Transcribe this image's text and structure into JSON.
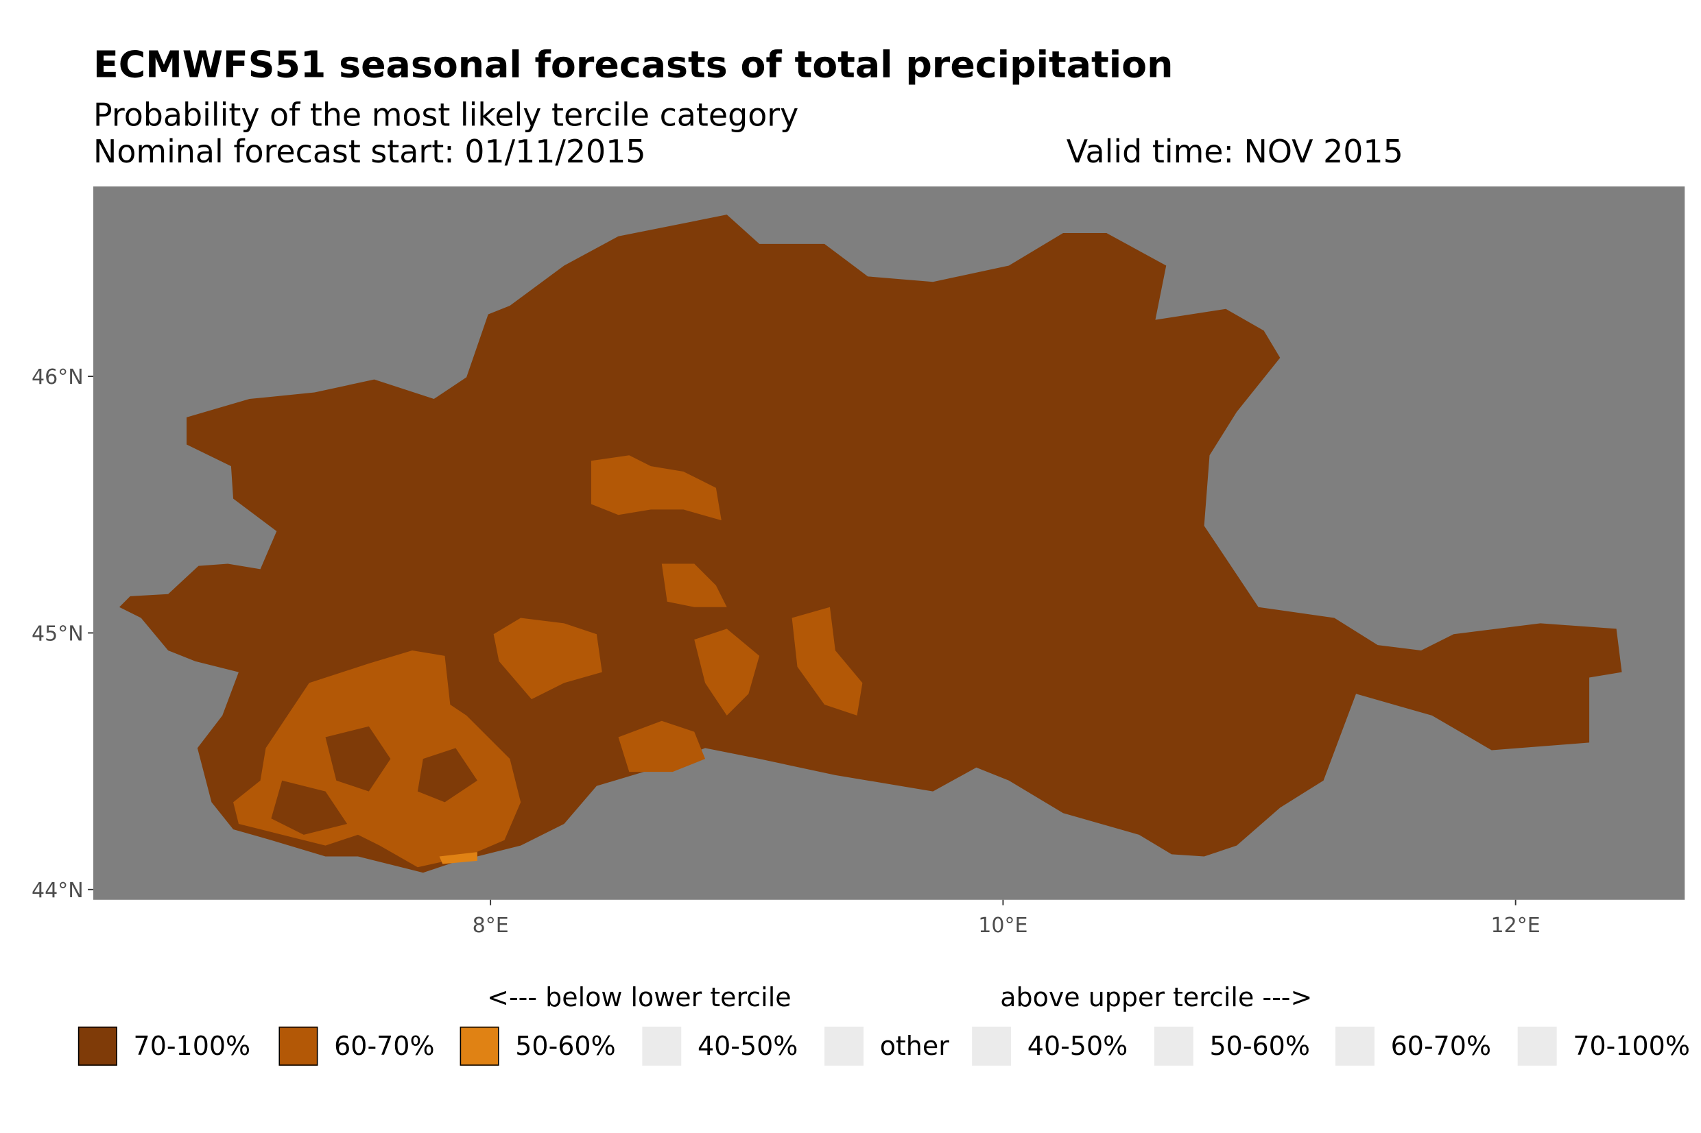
{
  "chart_data": {
    "type": "heatmap",
    "title": "ECMWFS51 seasonal forecasts of total precipitation",
    "subtitle": "Probability of the most likely tercile category",
    "forecast_start": "Nominal forecast start: 01/11/2015",
    "valid_time": "Valid time: NOV 2015",
    "x_axis": {
      "label": "",
      "ticks": [
        "8°E",
        "10°E",
        "12°E"
      ],
      "tick_values": [
        8,
        10,
        12
      ],
      "range": [
        6.45,
        12.66
      ]
    },
    "y_axis": {
      "label": "",
      "ticks": [
        "44°N",
        "45°N",
        "46°N"
      ],
      "tick_values": [
        44,
        45,
        46
      ],
      "range": [
        43.96,
        46.74
      ]
    },
    "background_color": "#7f7f7f",
    "dominant_category": "70-100% below lower tercile",
    "legend": {
      "placement": "bottom",
      "below_header": "<--- below lower tercile",
      "above_header": "above upper tercile --->",
      "entries": [
        {
          "label": "70-100%",
          "color": "#7f3b08"
        },
        {
          "label": "60-70%",
          "color": "#b35806"
        },
        {
          "label": "50-60%",
          "color": "#e08214"
        },
        {
          "label": "40-50%",
          "color": "#ebebeb"
        },
        {
          "label": "other",
          "color": "#ebebeb"
        },
        {
          "label": "40-50%",
          "color": "#ebebeb"
        },
        {
          "label": "50-60%",
          "color": "#ebebeb"
        },
        {
          "label": "60-70%",
          "color": "#ebebeb"
        },
        {
          "label": "70-100%",
          "color": "#ebebeb"
        }
      ]
    }
  }
}
